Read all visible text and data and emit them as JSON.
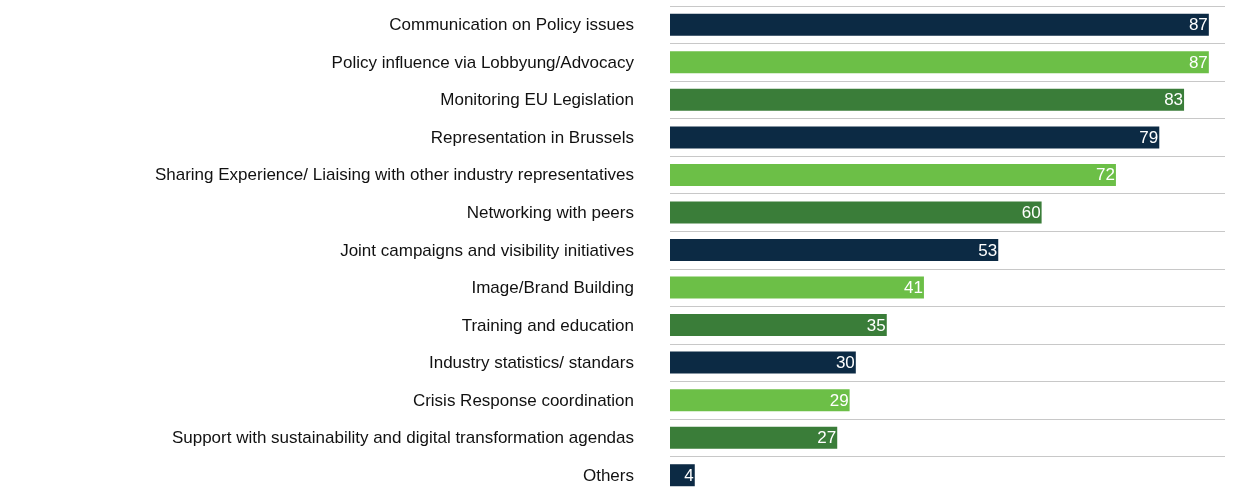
{
  "chart_data": {
    "type": "bar",
    "orientation": "horizontal",
    "categories": [
      "Communication on Policy issues",
      "Policy influence via Lobbyung/Advocacy",
      "Monitoring EU Legislation",
      "Representation in Brussels",
      "Sharing Experience/ Liaising with other industry representatives",
      "Networking with peers",
      "Joint campaigns and visibility initiatives",
      "Image/Brand Building",
      "Training and education",
      "Industry statistics/ standars",
      "Crisis Response coordination",
      "Support with sustainability and digital transformation agendas",
      "Others"
    ],
    "values": [
      87,
      87,
      83,
      79,
      72,
      60,
      53,
      41,
      35,
      30,
      29,
      27,
      4
    ],
    "colors": [
      "#0c2a44",
      "#6cbf47",
      "#3a7d39",
      "#0c2a44",
      "#6cbf47",
      "#3a7d39",
      "#0c2a44",
      "#6cbf47",
      "#3a7d39",
      "#0c2a44",
      "#6cbf47",
      "#3a7d39",
      "#0c2a44"
    ],
    "data_labels": true,
    "grid": "y"
  }
}
